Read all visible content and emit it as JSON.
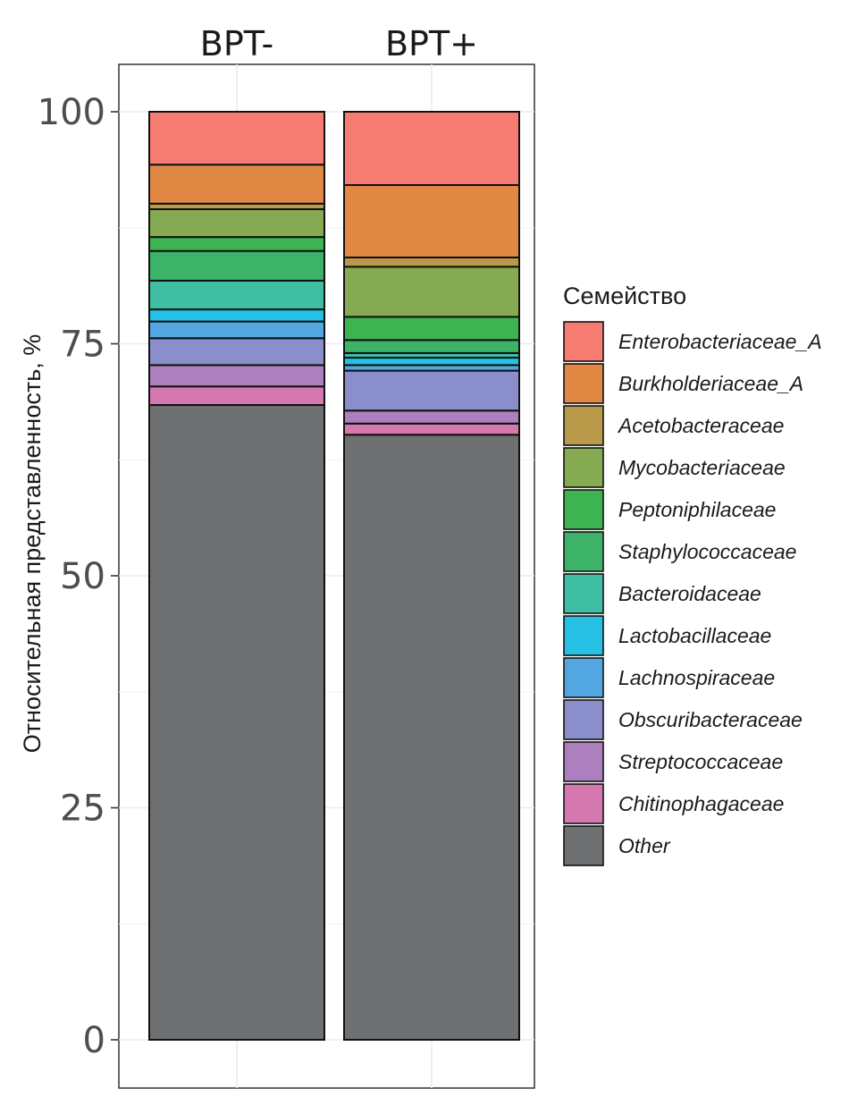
{
  "chart_data": {
    "type": "bar",
    "stacked": true,
    "categories": [
      "BPT-",
      "BPT+"
    ],
    "ylabel": "Относительная представленность, %",
    "xlabel": "",
    "ylim": [
      0,
      100
    ],
    "yticks": [
      0,
      25,
      50,
      75,
      100
    ],
    "legend_title": "Семейство",
    "legend_position": "right",
    "series": [
      {
        "name": "Other",
        "color": "#6e7072",
        "values": [
          68.4,
          65.2
        ]
      },
      {
        "name": "Chitinophagaceae",
        "color": "#d678b0",
        "values": [
          2.0,
          1.2
        ]
      },
      {
        "name": "Streptococcaceae",
        "color": "#ad7fbe",
        "values": [
          2.3,
          1.4
        ]
      },
      {
        "name": "Obscuribacteraceae",
        "color": "#8a8fcb",
        "values": [
          2.9,
          4.3
        ]
      },
      {
        "name": "Lachnospiraceae",
        "color": "#53a7e0",
        "values": [
          1.8,
          0.6
        ]
      },
      {
        "name": "Lactobacillaceae",
        "color": "#25c0e4",
        "values": [
          1.3,
          0.8
        ]
      },
      {
        "name": "Bacteroidaceae",
        "color": "#3fbea4",
        "values": [
          3.1,
          0.5
        ]
      },
      {
        "name": "Staphylococcaceae",
        "color": "#3db36a",
        "values": [
          3.2,
          1.4
        ]
      },
      {
        "name": "Peptoniphilaceae",
        "color": "#3db451",
        "values": [
          1.5,
          2.5
        ]
      },
      {
        "name": "Mycobacteriaceae",
        "color": "#85aa51",
        "values": [
          3.0,
          5.4
        ]
      },
      {
        "name": "Acetobacteraceae",
        "color": "#b9994a",
        "values": [
          0.6,
          1.0
        ]
      },
      {
        "name": "Burkholderiaceae_A",
        "color": "#e08844",
        "values": [
          4.2,
          7.8
        ]
      },
      {
        "name": "Enterobacteriaceae_A",
        "color": "#f67c72",
        "values": [
          5.7,
          7.9
        ]
      }
    ],
    "legend_order": [
      "Enterobacteriaceae_A",
      "Burkholderiaceae_A",
      "Acetobacteraceae",
      "Mycobacteriaceae",
      "Peptoniphilaceae",
      "Staphylococcaceae",
      "Bacteroidaceae",
      "Lactobacillaceae",
      "Lachnospiraceae",
      "Obscuribacteraceae",
      "Streptococcaceae",
      "Chitinophagaceae",
      "Other"
    ]
  }
}
